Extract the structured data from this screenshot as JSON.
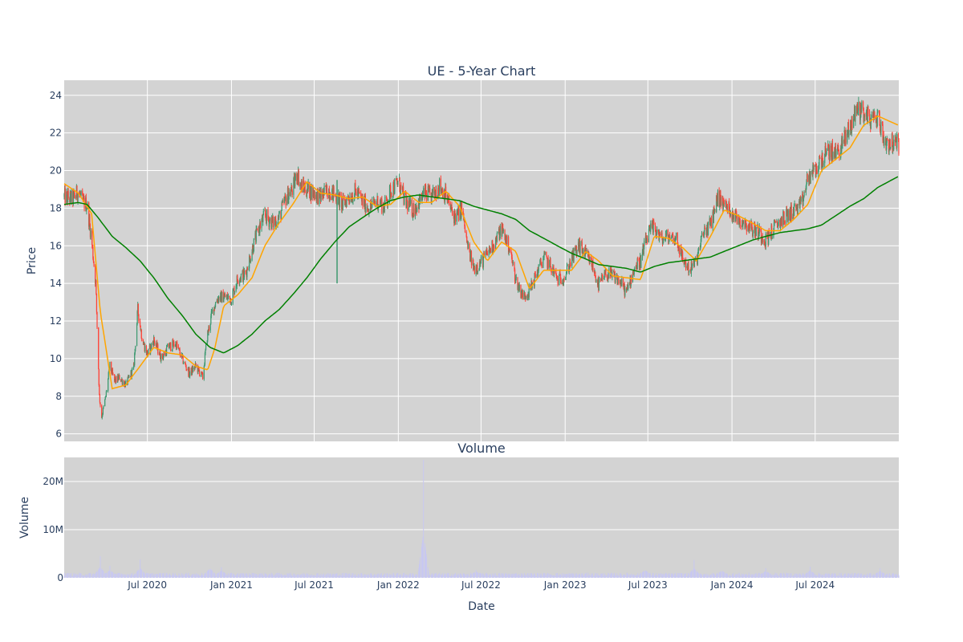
{
  "chart_data": [
    {
      "type": "candlestick",
      "title": "UE - 5-Year Chart",
      "xlabel": "",
      "ylabel": "Price",
      "ylim": [
        5.6,
        24.8
      ],
      "xlim": [
        "2020-01-01",
        "2024-12-31"
      ],
      "y_ticks": [
        6,
        8,
        10,
        12,
        14,
        16,
        18,
        20,
        22,
        24
      ],
      "x_gridlines": [
        "2020-07-01",
        "2021-01-01",
        "2021-07-01",
        "2022-01-01",
        "2022-07-01",
        "2023-01-01",
        "2023-07-01",
        "2024-01-01",
        "2024-07-01"
      ],
      "grid": true,
      "plot_background": "#d3d3d3",
      "colors": {
        "up": "#3d9970",
        "down": "#ff4136",
        "ma_short": "#ffa500",
        "ma_long": "#008000"
      },
      "price_path": [
        [
          "2020-01-01",
          18.6
        ],
        [
          "2020-01-20",
          18.5
        ],
        [
          "2020-02-01",
          18.9
        ],
        [
          "2020-02-10",
          18.3
        ],
        [
          "2020-02-20",
          18.2
        ],
        [
          "2020-03-01",
          16.3
        ],
        [
          "2020-03-10",
          14.0
        ],
        [
          "2020-03-18",
          8.0
        ],
        [
          "2020-03-23",
          6.9
        ],
        [
          "2020-04-01",
          8.0
        ],
        [
          "2020-04-10",
          9.6
        ],
        [
          "2020-04-20",
          8.8
        ],
        [
          "2020-05-01",
          9.0
        ],
        [
          "2020-05-15",
          8.6
        ],
        [
          "2020-06-01",
          9.5
        ],
        [
          "2020-06-10",
          12.6
        ],
        [
          "2020-06-20",
          11.0
        ],
        [
          "2020-07-01",
          10.2
        ],
        [
          "2020-07-15",
          11.0
        ],
        [
          "2020-08-01",
          10.0
        ],
        [
          "2020-08-15",
          10.6
        ],
        [
          "2020-09-01",
          10.8
        ],
        [
          "2020-09-15",
          10.0
        ],
        [
          "2020-10-01",
          9.2
        ],
        [
          "2020-10-15",
          9.6
        ],
        [
          "2020-10-30",
          9.0
        ],
        [
          "2020-11-09",
          11.2
        ],
        [
          "2020-11-20",
          12.5
        ],
        [
          "2020-12-01",
          13.2
        ],
        [
          "2020-12-15",
          13.3
        ],
        [
          "2021-01-01",
          13.2
        ],
        [
          "2021-01-15",
          14.3
        ],
        [
          "2021-02-01",
          14.5
        ],
        [
          "2021-02-15",
          15.8
        ],
        [
          "2021-03-01",
          16.9
        ],
        [
          "2021-03-15",
          17.6
        ],
        [
          "2021-04-01",
          17.2
        ],
        [
          "2021-04-15",
          17.5
        ],
        [
          "2021-05-01",
          18.6
        ],
        [
          "2021-05-15",
          19.0
        ],
        [
          "2021-05-25",
          19.9
        ],
        [
          "2021-06-01",
          19.2
        ],
        [
          "2021-06-15",
          19.0
        ],
        [
          "2021-07-01",
          18.8
        ],
        [
          "2021-07-15",
          18.6
        ],
        [
          "2021-08-01",
          19.0
        ],
        [
          "2021-08-15",
          18.7
        ],
        [
          "2021-09-01",
          18.2
        ],
        [
          "2021-09-15",
          18.6
        ],
        [
          "2021-10-01",
          18.9
        ],
        [
          "2021-10-15",
          18.3
        ],
        [
          "2021-11-01",
          18.0
        ],
        [
          "2021-11-15",
          18.4
        ],
        [
          "2021-12-01",
          18.1
        ],
        [
          "2021-12-15",
          18.9
        ],
        [
          "2022-01-01",
          19.4
        ],
        [
          "2022-01-15",
          18.4
        ],
        [
          "2022-02-01",
          17.9
        ],
        [
          "2022-02-15",
          18.3
        ],
        [
          "2022-03-01",
          18.8
        ],
        [
          "2022-03-15",
          18.6
        ],
        [
          "2022-04-01",
          19.2
        ],
        [
          "2022-04-15",
          18.7
        ],
        [
          "2022-05-01",
          17.6
        ],
        [
          "2022-05-10",
          17.6
        ],
        [
          "2022-05-20",
          18.0
        ],
        [
          "2022-06-01",
          16.0
        ],
        [
          "2022-06-15",
          14.8
        ],
        [
          "2022-07-01",
          15.1
        ],
        [
          "2022-07-15",
          15.6
        ],
        [
          "2022-08-01",
          16.2
        ],
        [
          "2022-08-15",
          16.9
        ],
        [
          "2022-09-01",
          15.9
        ],
        [
          "2022-09-15",
          14.2
        ],
        [
          "2022-10-01",
          13.3
        ],
        [
          "2022-10-15",
          13.6
        ],
        [
          "2022-11-01",
          14.6
        ],
        [
          "2022-11-15",
          15.4
        ],
        [
          "2022-12-01",
          14.9
        ],
        [
          "2022-12-15",
          14.2
        ],
        [
          "2023-01-01",
          14.4
        ],
        [
          "2023-01-15",
          15.3
        ],
        [
          "2023-02-01",
          16.0
        ],
        [
          "2023-02-15",
          15.5
        ],
        [
          "2023-03-01",
          15.0
        ],
        [
          "2023-03-15",
          13.9
        ],
        [
          "2023-04-01",
          14.5
        ],
        [
          "2023-04-15",
          14.4
        ],
        [
          "2023-05-01",
          14.1
        ],
        [
          "2023-05-15",
          13.5
        ],
        [
          "2023-06-01",
          14.8
        ],
        [
          "2023-06-15",
          15.2
        ],
        [
          "2023-07-01",
          16.6
        ],
        [
          "2023-07-15",
          17.0
        ],
        [
          "2023-08-01",
          16.3
        ],
        [
          "2023-08-15",
          16.5
        ],
        [
          "2023-09-01",
          16.4
        ],
        [
          "2023-09-15",
          15.3
        ],
        [
          "2023-10-01",
          14.7
        ],
        [
          "2023-10-15",
          15.2
        ],
        [
          "2023-11-01",
          16.8
        ],
        [
          "2023-11-15",
          17.1
        ],
        [
          "2023-12-01",
          18.6
        ],
        [
          "2023-12-15",
          18.2
        ],
        [
          "2024-01-01",
          17.8
        ],
        [
          "2024-01-15",
          17.4
        ],
        [
          "2024-02-01",
          17.2
        ],
        [
          "2024-02-15",
          16.9
        ],
        [
          "2024-03-01",
          16.7
        ],
        [
          "2024-03-15",
          16.3
        ],
        [
          "2024-04-01",
          16.9
        ],
        [
          "2024-04-15",
          17.3
        ],
        [
          "2024-05-01",
          17.6
        ],
        [
          "2024-05-15",
          17.9
        ],
        [
          "2024-06-01",
          18.1
        ],
        [
          "2024-06-15",
          19.6
        ],
        [
          "2024-07-01",
          20.0
        ],
        [
          "2024-07-15",
          20.6
        ],
        [
          "2024-08-01",
          21.0
        ],
        [
          "2024-08-15",
          20.9
        ],
        [
          "2024-09-01",
          21.5
        ],
        [
          "2024-09-15",
          22.3
        ],
        [
          "2024-10-01",
          23.3
        ],
        [
          "2024-10-15",
          23.1
        ],
        [
          "2024-11-01",
          22.7
        ],
        [
          "2024-11-15",
          22.9
        ],
        [
          "2024-12-01",
          21.5
        ],
        [
          "2024-12-31",
          21.4
        ]
      ],
      "ma_short_path": [
        [
          "2020-01-01",
          19.3
        ],
        [
          "2020-02-01",
          18.8
        ],
        [
          "2020-03-01",
          17.7
        ],
        [
          "2020-03-20",
          12.5
        ],
        [
          "2020-04-15",
          8.4
        ],
        [
          "2020-05-15",
          8.6
        ],
        [
          "2020-06-15",
          9.6
        ],
        [
          "2020-07-15",
          10.6
        ],
        [
          "2020-08-15",
          10.3
        ],
        [
          "2020-09-15",
          10.2
        ],
        [
          "2020-10-15",
          9.6
        ],
        [
          "2020-11-10",
          9.4
        ],
        [
          "2020-11-25",
          10.5
        ],
        [
          "2020-12-15",
          12.8
        ],
        [
          "2021-01-15",
          13.4
        ],
        [
          "2021-02-15",
          14.3
        ],
        [
          "2021-03-15",
          16.0
        ],
        [
          "2021-04-15",
          17.2
        ],
        [
          "2021-05-15",
          18.2
        ],
        [
          "2021-06-15",
          19.4
        ],
        [
          "2021-07-15",
          18.8
        ],
        [
          "2021-08-15",
          18.7
        ],
        [
          "2021-09-15",
          18.5
        ],
        [
          "2021-10-15",
          18.6
        ],
        [
          "2021-11-15",
          18.1
        ],
        [
          "2021-12-15",
          18.2
        ],
        [
          "2022-01-15",
          18.9
        ],
        [
          "2022-02-15",
          18.3
        ],
        [
          "2022-03-15",
          18.3
        ],
        [
          "2022-04-15",
          18.9
        ],
        [
          "2022-05-15",
          18.1
        ],
        [
          "2022-06-15",
          16.2
        ],
        [
          "2022-07-15",
          15.2
        ],
        [
          "2022-08-15",
          16.2
        ],
        [
          "2022-09-15",
          15.7
        ],
        [
          "2022-10-15",
          13.7
        ],
        [
          "2022-11-15",
          14.7
        ],
        [
          "2022-12-15",
          14.7
        ],
        [
          "2023-01-15",
          14.7
        ],
        [
          "2023-02-15",
          15.7
        ],
        [
          "2023-03-15",
          15.2
        ],
        [
          "2023-04-15",
          14.4
        ],
        [
          "2023-05-15",
          14.3
        ],
        [
          "2023-06-15",
          14.2
        ],
        [
          "2023-07-15",
          16.5
        ],
        [
          "2023-08-15",
          16.4
        ],
        [
          "2023-09-15",
          15.9
        ],
        [
          "2023-10-15",
          15.2
        ],
        [
          "2023-11-15",
          16.5
        ],
        [
          "2023-12-15",
          17.9
        ],
        [
          "2024-01-15",
          17.6
        ],
        [
          "2024-02-15",
          17.2
        ],
        [
          "2024-03-15",
          16.8
        ],
        [
          "2024-04-15",
          16.8
        ],
        [
          "2024-05-15",
          17.4
        ],
        [
          "2024-06-15",
          18.2
        ],
        [
          "2024-07-15",
          20.0
        ],
        [
          "2024-08-15",
          20.6
        ],
        [
          "2024-09-15",
          21.2
        ],
        [
          "2024-10-15",
          22.4
        ],
        [
          "2024-11-15",
          22.9
        ],
        [
          "2024-12-31",
          22.4
        ]
      ],
      "ma_long_path": [
        [
          "2020-01-01",
          18.2
        ],
        [
          "2020-02-01",
          18.3
        ],
        [
          "2020-02-20",
          18.2
        ],
        [
          "2020-03-15",
          17.5
        ],
        [
          "2020-04-15",
          16.5
        ],
        [
          "2020-05-15",
          15.9
        ],
        [
          "2020-06-15",
          15.2
        ],
        [
          "2020-07-15",
          14.3
        ],
        [
          "2020-08-15",
          13.2
        ],
        [
          "2020-09-15",
          12.3
        ],
        [
          "2020-10-15",
          11.3
        ],
        [
          "2020-11-15",
          10.6
        ],
        [
          "2020-12-15",
          10.3
        ],
        [
          "2021-01-15",
          10.7
        ],
        [
          "2021-02-15",
          11.3
        ],
        [
          "2021-03-15",
          12.0
        ],
        [
          "2021-04-15",
          12.6
        ],
        [
          "2021-05-15",
          13.4
        ],
        [
          "2021-06-15",
          14.3
        ],
        [
          "2021-07-15",
          15.3
        ],
        [
          "2021-08-15",
          16.2
        ],
        [
          "2021-09-15",
          17.0
        ],
        [
          "2021-10-15",
          17.5
        ],
        [
          "2021-11-15",
          18.0
        ],
        [
          "2021-12-15",
          18.4
        ],
        [
          "2022-01-15",
          18.6
        ],
        [
          "2022-02-15",
          18.7
        ],
        [
          "2022-03-15",
          18.6
        ],
        [
          "2022-04-15",
          18.5
        ],
        [
          "2022-05-15",
          18.4
        ],
        [
          "2022-06-15",
          18.1
        ],
        [
          "2022-07-15",
          17.9
        ],
        [
          "2022-08-15",
          17.7
        ],
        [
          "2022-09-15",
          17.4
        ],
        [
          "2022-10-15",
          16.8
        ],
        [
          "2022-11-15",
          16.4
        ],
        [
          "2022-12-15",
          16.0
        ],
        [
          "2023-01-15",
          15.6
        ],
        [
          "2023-02-15",
          15.3
        ],
        [
          "2023-03-15",
          15.0
        ],
        [
          "2023-04-15",
          14.9
        ],
        [
          "2023-05-15",
          14.8
        ],
        [
          "2023-06-15",
          14.6
        ],
        [
          "2023-07-15",
          14.9
        ],
        [
          "2023-08-15",
          15.1
        ],
        [
          "2023-09-15",
          15.2
        ],
        [
          "2023-10-15",
          15.3
        ],
        [
          "2023-11-15",
          15.4
        ],
        [
          "2023-12-15",
          15.7
        ],
        [
          "2024-01-15",
          16.0
        ],
        [
          "2024-02-15",
          16.3
        ],
        [
          "2024-03-15",
          16.5
        ],
        [
          "2024-04-15",
          16.7
        ],
        [
          "2024-05-15",
          16.8
        ],
        [
          "2024-06-15",
          16.9
        ],
        [
          "2024-07-15",
          17.1
        ],
        [
          "2024-08-15",
          17.6
        ],
        [
          "2024-09-15",
          18.1
        ],
        [
          "2024-10-15",
          18.5
        ],
        [
          "2024-11-15",
          19.1
        ],
        [
          "2024-12-31",
          19.7
        ]
      ],
      "spikes": [
        {
          "date": "2021-08-20",
          "low": 14.0,
          "high": 19.5
        }
      ]
    },
    {
      "type": "bar",
      "title": "Volume",
      "xlabel": "Date",
      "ylabel": "Volume",
      "ylim": [
        0,
        25000000
      ],
      "y_ticks": [
        0,
        10000000,
        20000000
      ],
      "y_tick_labels": [
        "0",
        "10M",
        "20M"
      ],
      "x_tick_dates": [
        "2020-07-01",
        "2021-01-01",
        "2021-07-01",
        "2022-01-01",
        "2022-07-01",
        "2023-01-01",
        "2023-07-01",
        "2024-01-01",
        "2024-07-01"
      ],
      "x_tick_labels": [
        "Jul 2020",
        "Jan 2021",
        "Jul 2021",
        "Jan 2022",
        "Jul 2022",
        "Jan 2023",
        "Jul 2023",
        "Jan 2024",
        "Jul 2024"
      ],
      "bar_color": "#c8c8f0",
      "baseline_volume": 700000,
      "peaks": [
        [
          "2020-03-20",
          4500000
        ],
        [
          "2020-04-10",
          2500000
        ],
        [
          "2020-06-15",
          3800000
        ],
        [
          "2020-11-15",
          3600000
        ],
        [
          "2020-12-10",
          2200000
        ],
        [
          "2022-02-25",
          24500000
        ],
        [
          "2022-06-20",
          1600000
        ],
        [
          "2023-06-25",
          2500000
        ],
        [
          "2023-10-10",
          3700000
        ],
        [
          "2023-12-10",
          2200000
        ],
        [
          "2024-03-15",
          2000000
        ],
        [
          "2024-06-20",
          2300000
        ],
        [
          "2024-11-20",
          2000000
        ]
      ]
    }
  ]
}
